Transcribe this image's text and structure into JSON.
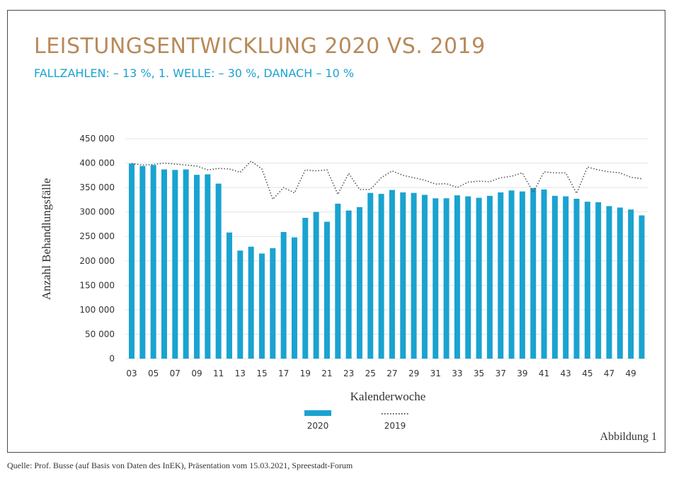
{
  "title": "LEISTUNGSENTWICKLUNG 2020 VS. 2019",
  "subtitle": "FALLZAHLEN: – 13 %, 1. WELLE: – 30 %, DANACH – 10 %",
  "figure_label": "Abbildung 1",
  "source": "Quelle: Prof. Busse (auf Basis von Daten des InEK), Präsentation vom 15.03.2021, Spreestadt-Forum",
  "colors": {
    "bar_2020": "#1aa3d0",
    "line_2019": "#555555",
    "title": "#b88a5a",
    "subtitle": "#1aa3d0",
    "grid": "#e3e3e3"
  },
  "chart_data": {
    "type": "bar",
    "xlabel": "Kalenderwoche",
    "ylabel": "Anzahl Behandlungsfälle",
    "ylim": [
      0,
      450000
    ],
    "y_ticks": [
      "450 000",
      "400 000",
      "350 000",
      "300 000",
      "250 000",
      "200 000",
      "150 000",
      "100 000",
      "50 000",
      "0"
    ],
    "y_tick_values": [
      450000,
      400000,
      350000,
      300000,
      250000,
      200000,
      150000,
      100000,
      50000,
      0
    ],
    "x_tick_labels": [
      "03",
      "05",
      "07",
      "09",
      "11",
      "13",
      "15",
      "17",
      "19",
      "21",
      "23",
      "25",
      "27",
      "29",
      "31",
      "33",
      "35",
      "37",
      "39",
      "41",
      "43",
      "45",
      "47",
      "49"
    ],
    "categories": [
      3,
      4,
      5,
      6,
      7,
      8,
      9,
      10,
      11,
      12,
      13,
      14,
      15,
      16,
      17,
      18,
      19,
      20,
      21,
      22,
      23,
      24,
      25,
      26,
      27,
      28,
      29,
      30,
      31,
      32,
      33,
      34,
      35,
      36,
      37,
      38,
      39,
      40,
      41,
      42,
      43,
      44,
      45,
      46,
      47,
      48,
      49,
      50
    ],
    "grid": true,
    "legend_position": "bottom",
    "series": [
      {
        "name": "2020",
        "kind": "bar",
        "values": [
          399000,
          394000,
          396000,
          387000,
          386000,
          387000,
          376000,
          377000,
          358000,
          258000,
          221000,
          229000,
          215000,
          226000,
          259000,
          248000,
          288000,
          300000,
          280000,
          317000,
          303000,
          310000,
          339000,
          337000,
          345000,
          340000,
          339000,
          335000,
          328000,
          328000,
          334000,
          332000,
          329000,
          333000,
          340000,
          344000,
          342000,
          349000,
          346000,
          333000,
          332000,
          327000,
          321000,
          320000,
          312000,
          309000,
          305000,
          293000
        ]
      },
      {
        "name": "2019",
        "kind": "dotted-line",
        "values": [
          399000,
          396000,
          397000,
          400000,
          398000,
          396000,
          394000,
          386000,
          389000,
          388000,
          381000,
          404000,
          388000,
          326000,
          350000,
          339000,
          386000,
          384000,
          386000,
          336000,
          379000,
          346000,
          346000,
          370000,
          384000,
          375000,
          370000,
          365000,
          357000,
          358000,
          350000,
          361000,
          363000,
          362000,
          370000,
          373000,
          380000,
          340000,
          382000,
          380000,
          380000,
          338000,
          392000,
          386000,
          382000,
          380000,
          371000,
          368000
        ]
      }
    ]
  }
}
